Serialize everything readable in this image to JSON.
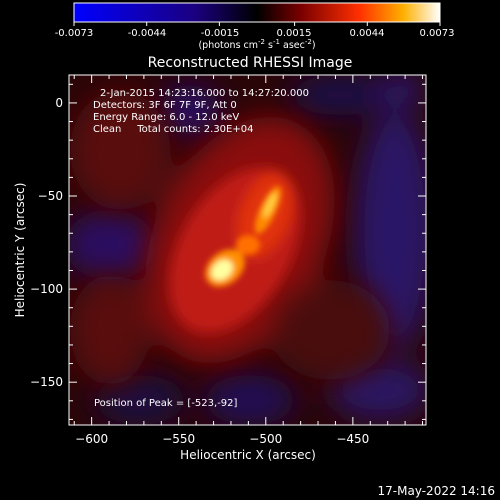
{
  "colorbar": {
    "tick_labels": [
      "-0.0073",
      "-0.0044",
      "-0.0015",
      "0.0015",
      "0.0044",
      "0.0073"
    ],
    "units_main": "(photons cm",
    "units_sup1": "-2",
    "units_mid1": " s",
    "units_sup2": "-1",
    "units_mid2": " asec",
    "units_sup3": "-2",
    "units_end": ")",
    "range": [
      -0.0073,
      0.0073
    ]
  },
  "title": "Reconstructed RHESSI Image",
  "info": {
    "time_range": "2-Jan-2015 14:23:16.000 to 14:27:20.000",
    "detectors": "Detectors: 3F 6F 7F 9F, Att 0",
    "energy": "Energy Range: 6.0 - 12.0 keV",
    "clean": "Clean     Total counts: 2.30E+04",
    "peak": "Position of Peak = [-523,-92]"
  },
  "axes": {
    "xlabel": "Heliocentric X (arcsec)",
    "ylabel": "Heliocentric Y (arcsec)",
    "x_ticks": [
      -600,
      -550,
      -500,
      -450
    ],
    "x_tick_labels": [
      "−600",
      "−550",
      "−500",
      "−450"
    ],
    "y_ticks": [
      0,
      -50,
      -100,
      -150
    ],
    "y_tick_labels": [
      "0",
      "−50",
      "−100",
      "−150"
    ],
    "xlim": [
      -613,
      -408
    ],
    "ylim": [
      -173,
      15
    ]
  },
  "peak_position": [
    -523,
    -92
  ],
  "timestamp": "17-May-2022 14:16"
}
